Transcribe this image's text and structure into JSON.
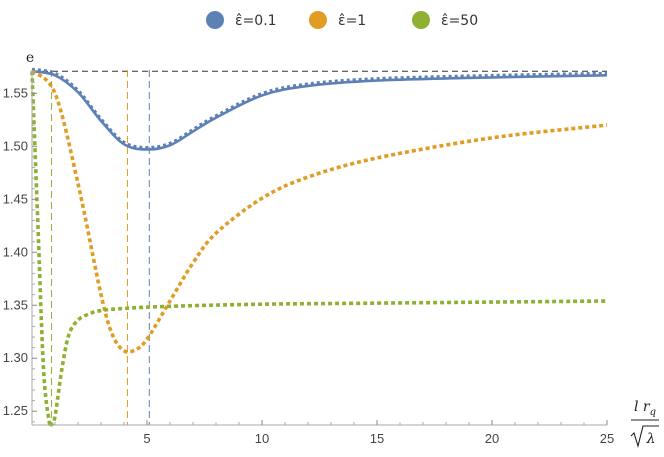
{
  "chart_data": {
    "type": "line",
    "ylabel": "e",
    "xlabel": "l r_q / √λ",
    "x_ticks": [
      5,
      10,
      15,
      20,
      25
    ],
    "y_ticks": [
      1.25,
      1.3,
      1.35,
      1.4,
      1.45,
      1.5,
      1.55
    ],
    "xlim": [
      0,
      25
    ],
    "ylim": [
      1.237,
      1.572
    ],
    "reference_line_y": 1.5708,
    "vertical_markers": [
      {
        "x": 0.85,
        "series": "ε̂=50"
      },
      {
        "x": 4.15,
        "series": "ε̂=1"
      },
      {
        "x": 5.1,
        "series": "ε̂=0.1"
      }
    ],
    "legend_position": "top-center",
    "series": [
      {
        "name": "ε̂=0.1",
        "color": "#5e81b5",
        "x": [
          0,
          1,
          2,
          3,
          4,
          5,
          6,
          7,
          8,
          10,
          12,
          15,
          20,
          25
        ],
        "y": [
          1.5708,
          1.567,
          1.551,
          1.524,
          1.502,
          1.497,
          1.501,
          1.514,
          1.527,
          1.548,
          1.557,
          1.562,
          1.565,
          1.567
        ]
      },
      {
        "name": "ε̂=1",
        "color": "#e19c24",
        "x": [
          0,
          1,
          2,
          3,
          3.5,
          4,
          4.5,
          5,
          6,
          7,
          8,
          10,
          12,
          15,
          20,
          25
        ],
        "y": [
          1.5708,
          1.55,
          1.465,
          1.36,
          1.322,
          1.307,
          1.308,
          1.318,
          1.354,
          1.39,
          1.418,
          1.451,
          1.471,
          1.489,
          1.508,
          1.52
        ]
      },
      {
        "name": "ε̂=50",
        "color": "#8fb032",
        "x": [
          0,
          0.25,
          0.5,
          0.75,
          0.85,
          1,
          1.3,
          1.6,
          2,
          2.5,
          3,
          4,
          6,
          10,
          15,
          20,
          25
        ],
        "y": [
          1.5708,
          1.43,
          1.29,
          1.24,
          1.238,
          1.245,
          1.29,
          1.322,
          1.336,
          1.342,
          1.345,
          1.347,
          1.349,
          1.351,
          1.352,
          1.353,
          1.354
        ]
      }
    ]
  }
}
